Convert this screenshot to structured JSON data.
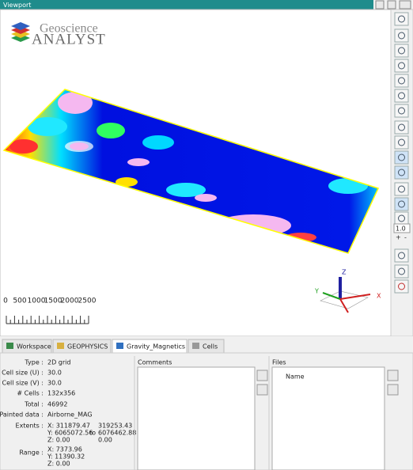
{
  "window": {
    "title": "Viewport"
  },
  "logo": {
    "line1": "Geoscience",
    "line2": "ANALYST"
  },
  "scale_bar": {
    "labels": [
      "0",
      "500",
      "1000",
      "1500",
      "2000",
      "2500"
    ]
  },
  "axes": {
    "z": "Z",
    "y": "Y",
    "x": "X"
  },
  "toolbar": {
    "zoom": "1.0",
    "plus": "+",
    "minus": "-"
  },
  "tabs": [
    "Workspace",
    "GEOPHYSICS",
    "Gravity_Magnetics",
    "Cells"
  ],
  "properties": [
    {
      "label": "Type :",
      "value": "2D grid"
    },
    {
      "label": "Cell size (U) :",
      "value": "30.0"
    },
    {
      "label": "Cell size (V) :",
      "value": "30.0"
    },
    {
      "label": "# Cells :",
      "value": "132x356"
    },
    {
      "label": "Total :",
      "value": "46992"
    },
    {
      "label": "Painted data :",
      "value": "Airborne_MAG"
    }
  ],
  "extents": {
    "label": "Extents :",
    "from": [
      "X: 311879.47",
      "Y: 6065072.56",
      "Z: 0.00"
    ],
    "to_word": "to",
    "to": [
      "319253.43",
      "6076462.88",
      "0.00"
    ]
  },
  "range": {
    "label": "Range :",
    "values": [
      "X: 7373.96",
      "Y: 11390.32",
      "Z: 0.00"
    ]
  },
  "comments": {
    "title": "Comments"
  },
  "files": {
    "title": "Files",
    "column": "Name"
  }
}
